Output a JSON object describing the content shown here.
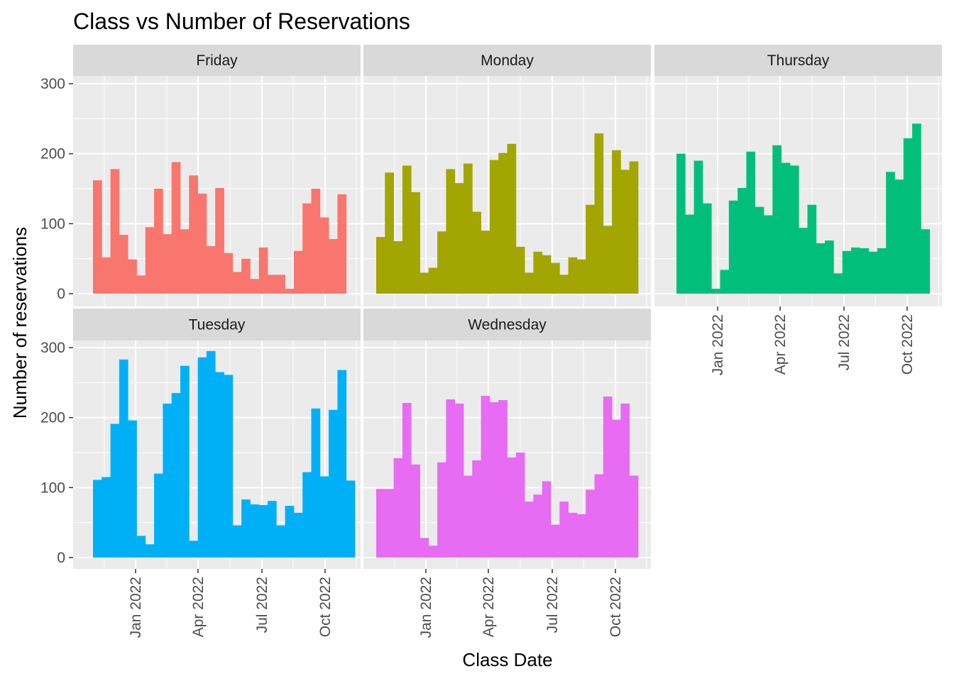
{
  "title": "Class vs Number of Reservations",
  "xlabel": "Class Date",
  "ylabel": "Number of reservations",
  "colors": {
    "panel_background": "#EBEBEB",
    "strip_background": "#D9D9D9",
    "grid": "#FFFFFF",
    "tick": "#333333"
  },
  "chart_data": {
    "type": "bar",
    "facet_by": "weekday",
    "x_ticks": [
      "Jan 2022",
      "Apr 2022",
      "Jul 2022",
      "Oct 2022"
    ],
    "y_ticks": [
      "0",
      "100",
      "200",
      "300"
    ],
    "ylim": [
      0,
      300
    ],
    "grid": true,
    "legend": "none",
    "series": [
      {
        "name": "Friday",
        "color": "#F8766D",
        "values": [
          162,
          52,
          178,
          84,
          49,
          26,
          95,
          150,
          85,
          188,
          92,
          169,
          143,
          68,
          151,
          58,
          31,
          50,
          21,
          66,
          27,
          27,
          7,
          61,
          129,
          150,
          109,
          78,
          142
        ]
      },
      {
        "name": "Monday",
        "color": "#A3A500",
        "values": [
          81,
          173,
          75,
          183,
          145,
          30,
          37,
          89,
          178,
          158,
          186,
          117,
          90,
          191,
          201,
          214,
          67,
          30,
          60,
          55,
          44,
          27,
          52,
          49,
          127,
          229,
          97,
          205,
          177,
          189
        ]
      },
      {
        "name": "Thursday",
        "color": "#00BF7D",
        "values": [
          200,
          113,
          190,
          129,
          7,
          34,
          133,
          151,
          203,
          124,
          112,
          212,
          187,
          183,
          94,
          127,
          72,
          76,
          29,
          61,
          66,
          65,
          60,
          65,
          174,
          163,
          222,
          243,
          92
        ]
      },
      {
        "name": "Tuesday",
        "color": "#00B0F6",
        "values": [
          111,
          115,
          191,
          283,
          196,
          31,
          19,
          120,
          220,
          235,
          274,
          24,
          286,
          295,
          265,
          261,
          46,
          83,
          76,
          75,
          81,
          46,
          74,
          64,
          122,
          213,
          116,
          211,
          268,
          110
        ]
      },
      {
        "name": "Wednesday",
        "color": "#E76BF3",
        "values": [
          98,
          98,
          142,
          221,
          133,
          28,
          17,
          136,
          226,
          220,
          117,
          139,
          231,
          222,
          225,
          143,
          150,
          80,
          90,
          109,
          47,
          80,
          64,
          62,
          97,
          119,
          230,
          197,
          220,
          117
        ]
      }
    ]
  }
}
